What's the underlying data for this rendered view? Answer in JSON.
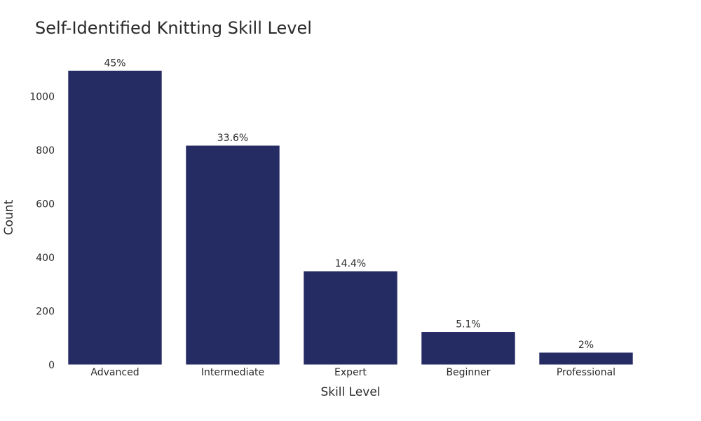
{
  "chart_data": {
    "type": "bar",
    "title": "Self-Identified Knitting Skill Level",
    "xlabel": "Skill Level",
    "ylabel": "Count",
    "categories": [
      "Advanced",
      "Intermediate",
      "Expert",
      "Beginner",
      "Professional"
    ],
    "values": [
      1097,
      818,
      350,
      124,
      47
    ],
    "data_labels": [
      "45%",
      "33.6%",
      "14.4%",
      "5.1%",
      "2%"
    ],
    "yticks": [
      0,
      200,
      400,
      600,
      800,
      1000
    ],
    "ylim": [
      0,
      1150
    ],
    "grid": false,
    "bar_color": "#252b63"
  }
}
